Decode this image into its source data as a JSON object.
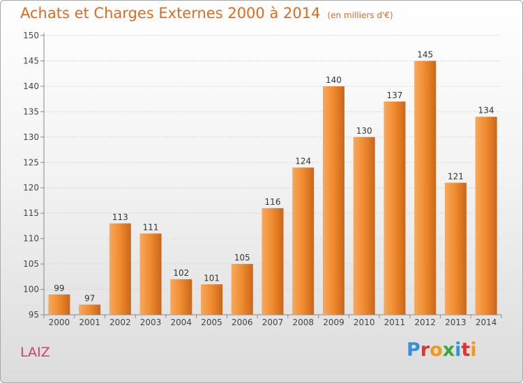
{
  "title": "Achats et Charges Externes 2000 à 2014",
  "subtitle": "(en milliers d'€)",
  "commune": "LAIZ",
  "logo": {
    "letters": [
      "P",
      "r",
      "o",
      "x",
      "i",
      "t",
      "i"
    ],
    "colors": [
      "#3a8fd6",
      "#e2312e",
      "#f09a1a",
      "#39a83c",
      "#3a8fd6",
      "#e2312e",
      "#f09a1a"
    ]
  },
  "colors": {
    "bar": "#f08a2e",
    "bar_light": "#f7a95c",
    "bar_dark": "#c9661a",
    "title": "#e06a1c",
    "commune": "#e0356a"
  },
  "chart_data": {
    "type": "bar",
    "categories": [
      "2000",
      "2001",
      "2002",
      "2003",
      "2004",
      "2005",
      "2006",
      "2007",
      "2008",
      "2009",
      "2010",
      "2011",
      "2012",
      "2013",
      "2014"
    ],
    "values": [
      99,
      97,
      113,
      111,
      102,
      101,
      105,
      116,
      124,
      140,
      130,
      137,
      145,
      121,
      134
    ],
    "ylim": [
      95,
      150
    ],
    "yticks": [
      95,
      100,
      105,
      110,
      115,
      120,
      125,
      130,
      135,
      140,
      145,
      150
    ],
    "grid": true,
    "legend": "none"
  }
}
